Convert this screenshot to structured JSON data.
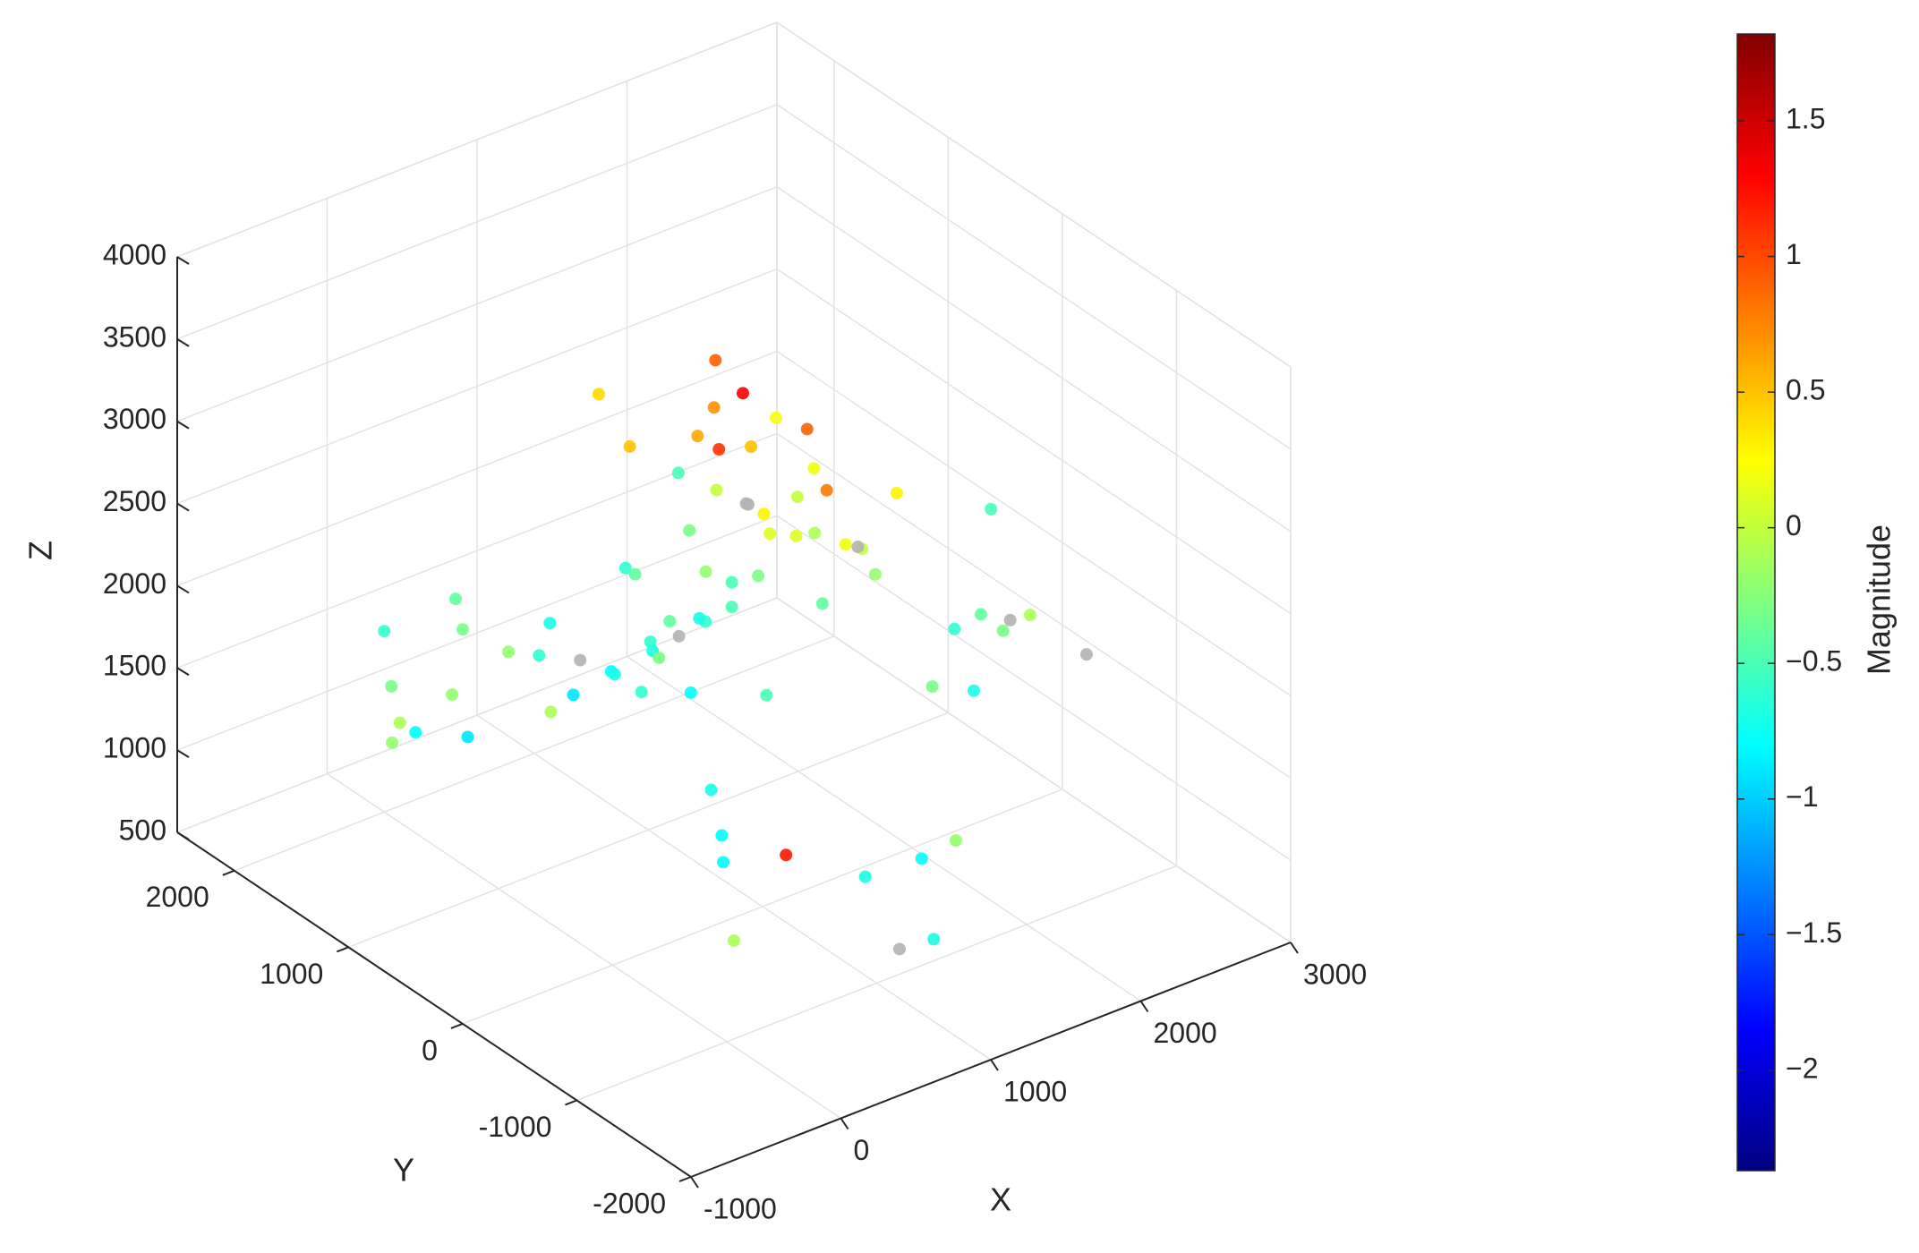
{
  "chart_data": {
    "type": "scatter3d",
    "x_label": "X",
    "y_label": "Y",
    "z_label": "Z",
    "colorbar_label": "Magnitude",
    "colormap": "jet",
    "missing_color": "#b3b3b3",
    "grid": true,
    "xlim": [
      -1000,
      3000
    ],
    "xticks": [
      -1000,
      0,
      1000,
      2000,
      3000
    ],
    "ylim": [
      -2000,
      2500
    ],
    "yticks": [
      -2000,
      -1000,
      0,
      1000,
      2000
    ],
    "zlim": [
      500,
      4000
    ],
    "zticks": [
      500,
      1000,
      1500,
      2000,
      2500,
      3000,
      3500,
      4000
    ],
    "clim": [
      -2.37,
      1.82
    ],
    "cticks": [
      {
        "value": -2,
        "label": "−2"
      },
      {
        "value": -1.5,
        "label": "−1.5"
      },
      {
        "value": -1,
        "label": "−1"
      },
      {
        "value": -0.5,
        "label": "−0.5"
      },
      0,
      0.5,
      1,
      1.5
    ],
    "x": [
      1000,
      1200,
      800,
      1500,
      600,
      1100,
      900,
      1300,
      700,
      1400,
      500,
      1600,
      1000,
      1250,
      850,
      1150,
      950,
      1350,
      750,
      1050,
      300,
      1800,
      2000,
      2200,
      -200,
      0,
      200,
      2400,
      2600,
      -400,
      1100,
      900,
      1200,
      800,
      1000,
      1300,
      700,
      1400,
      600,
      1500,
      1700,
      1900,
      400,
      100,
      2100,
      1000,
      1200,
      800,
      1600,
      500,
      1250,
      1450,
      1050,
      850,
      650,
      1550,
      950,
      1150,
      1750,
      350,
      2300,
      -100,
      1000,
      1800,
      1300,
      600,
      2500,
      200,
      1100,
      900,
      1400,
      700,
      1600,
      1000,
      1200,
      800,
      1500,
      500,
      1300,
      1000
    ],
    "y": [
      500,
      300,
      700,
      200,
      800,
      400,
      600,
      100,
      900,
      0,
      1000,
      -200,
      1200,
      -400,
      1400,
      600,
      -100,
      1100,
      300,
      1500,
      1800,
      -800,
      -600,
      400,
      1600,
      2000,
      2200,
      -1000,
      100,
      1200,
      700,
      250,
      -300,
      900,
      450,
      1300,
      -50,
      650,
      1700,
      350,
      800,
      -500,
      1900,
      1400,
      -900,
      -1200,
      1000,
      1600,
      -700,
      -300,
      500,
      200,
      0,
      300,
      600,
      -150,
      1050,
      750,
      150,
      1000,
      -400,
      1800,
      -1500,
      600,
      -1000,
      2100,
      -200,
      -800,
      400,
      850,
      950,
      -600,
      1200,
      -900,
      250,
      550,
      800,
      1300,
      -1300,
      100
    ],
    "z": [
      2000,
      2300,
      1800,
      2500,
      1700,
      2100,
      1900,
      2600,
      1600,
      2200,
      1500,
      2400,
      2000,
      2800,
      1400,
      2700,
      1850,
      2150,
      1750,
      2900,
      1200,
      1900,
      2200,
      2400,
      1300,
      1600,
      1100,
      2000,
      2300,
      1500,
      3000,
      3200,
      3100,
      2950,
      1000,
      1300,
      900,
      2500,
      1400,
      2650,
      2850,
      2100,
      1700,
      1200,
      2300,
      800,
      2600,
      1550,
      1950,
      1250,
      3300,
      3150,
      2750,
      2450,
      1650,
      2550,
      2050,
      1850,
      2350,
      1450,
      1900,
      1050,
      1000,
      2600,
      1150,
      1350,
      1800,
      950,
      2250,
      1750,
      2950,
      1200,
      3050,
      1100,
      2700,
      2050,
      2400,
      1600,
      1400,
      3250
    ],
    "magnitude": [
      -0.6,
      -0.3,
      -0.7,
      -0.1,
      -0.8,
      -0.5,
      null,
      0.1,
      -0.7,
      -0.4,
      -0.9,
      -0.2,
      -0.6,
      0.2,
      null,
      0.0,
      -0.5,
      -0.3,
      -0.8,
      0.4,
      -0.2,
      -0.7,
      -0.4,
      0.3,
      -0.1,
      -0.6,
      -0.3,
      null,
      -0.5,
      -0.8,
      0.6,
      1.1,
      0.8,
      0.5,
      -0.7,
      -0.3,
      -0.8,
      null,
      -0.2,
      0.0,
      0.2,
      -0.6,
      -0.4,
      -0.9,
      -0.1,
      null,
      -0.5,
      -0.7,
      -0.3,
      -0.8,
      1.3,
      0.9,
      0.1,
      -0.2,
      -0.6,
      0.0,
      -0.4,
      -0.7,
      null,
      -0.1,
      -0.3,
      -0.2,
      -0.7,
      0.2,
      -0.8,
      -0.3,
      null,
      -0.1,
      -0.5,
      -0.6,
      0.7,
      1.2,
      0.9,
      -0.7,
      0.3,
      -0.4,
      null,
      -0.6,
      -0.2,
      0.5
    ]
  }
}
